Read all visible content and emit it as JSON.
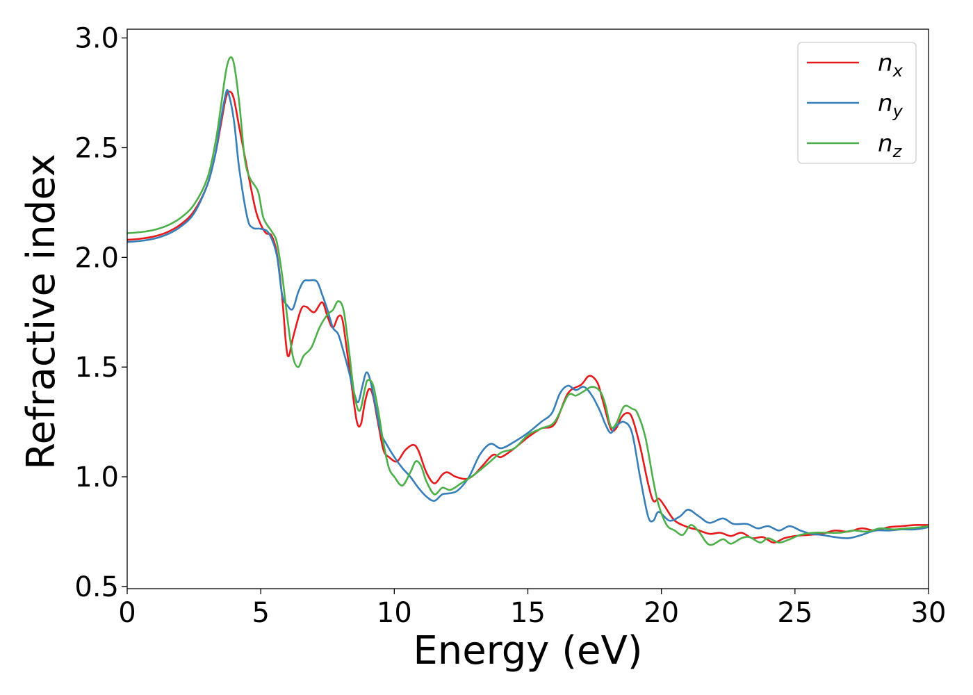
{
  "chart_data": {
    "type": "line",
    "title": "",
    "xlabel": "Energy (eV)",
    "ylabel": "Refractive index",
    "xlim": [
      0,
      30
    ],
    "ylim": [
      0.49,
      3.04
    ],
    "xticks": [
      0,
      5,
      10,
      15,
      20,
      25,
      30
    ],
    "xtick_labels": [
      "0",
      "5",
      "10",
      "15",
      "20",
      "25",
      "30"
    ],
    "yticks": [
      0.5,
      1.0,
      1.5,
      2.0,
      2.5,
      3.0
    ],
    "ytick_labels": [
      "0.5",
      "1.0",
      "1.5",
      "2.0",
      "2.5",
      "3.0"
    ],
    "grid": false,
    "legend_position": "top-right",
    "series": [
      {
        "name": "n_x",
        "legend_base": "n",
        "legend_sub": "x",
        "color": "#e41a1c",
        "points": [
          [
            0,
            2.08
          ],
          [
            0.5,
            2.085
          ],
          [
            1,
            2.095
          ],
          [
            1.5,
            2.115
          ],
          [
            2,
            2.15
          ],
          [
            2.5,
            2.21
          ],
          [
            3,
            2.33
          ],
          [
            3.3,
            2.47
          ],
          [
            3.5,
            2.6
          ],
          [
            3.7,
            2.73
          ],
          [
            3.85,
            2.755
          ],
          [
            4.0,
            2.72
          ],
          [
            4.2,
            2.59
          ],
          [
            4.5,
            2.4
          ],
          [
            4.8,
            2.22
          ],
          [
            5.0,
            2.15
          ],
          [
            5.2,
            2.11
          ],
          [
            5.4,
            2.1
          ],
          [
            5.6,
            2.02
          ],
          [
            5.8,
            1.82
          ],
          [
            5.95,
            1.6
          ],
          [
            6.05,
            1.55
          ],
          [
            6.2,
            1.63
          ],
          [
            6.5,
            1.76
          ],
          [
            6.7,
            1.775
          ],
          [
            7.0,
            1.75
          ],
          [
            7.3,
            1.795
          ],
          [
            7.5,
            1.73
          ],
          [
            7.7,
            1.68
          ],
          [
            7.9,
            1.73
          ],
          [
            8.05,
            1.72
          ],
          [
            8.2,
            1.6
          ],
          [
            8.4,
            1.42
          ],
          [
            8.6,
            1.25
          ],
          [
            8.75,
            1.24
          ],
          [
            8.9,
            1.34
          ],
          [
            9.05,
            1.4
          ],
          [
            9.2,
            1.37
          ],
          [
            9.4,
            1.24
          ],
          [
            9.6,
            1.12
          ],
          [
            9.8,
            1.09
          ],
          [
            10.1,
            1.07
          ],
          [
            10.4,
            1.12
          ],
          [
            10.7,
            1.145
          ],
          [
            10.9,
            1.12
          ],
          [
            11.2,
            1.02
          ],
          [
            11.5,
            0.97
          ],
          [
            11.8,
            1.01
          ],
          [
            12.0,
            1.02
          ],
          [
            12.3,
            1.0
          ],
          [
            12.7,
            0.99
          ],
          [
            13.0,
            1.01
          ],
          [
            13.3,
            1.05
          ],
          [
            13.7,
            1.1
          ],
          [
            14.0,
            1.09
          ],
          [
            14.5,
            1.13
          ],
          [
            15.0,
            1.18
          ],
          [
            15.5,
            1.22
          ],
          [
            16.0,
            1.24
          ],
          [
            16.5,
            1.38
          ],
          [
            17.0,
            1.42
          ],
          [
            17.3,
            1.46
          ],
          [
            17.6,
            1.43
          ],
          [
            17.8,
            1.35
          ],
          [
            18.1,
            1.22
          ],
          [
            18.3,
            1.22
          ],
          [
            18.5,
            1.27
          ],
          [
            18.7,
            1.29
          ],
          [
            18.9,
            1.27
          ],
          [
            19.2,
            1.14
          ],
          [
            19.5,
            0.97
          ],
          [
            19.7,
            0.89
          ],
          [
            19.9,
            0.9
          ],
          [
            20.1,
            0.87
          ],
          [
            20.5,
            0.8
          ],
          [
            21.0,
            0.77
          ],
          [
            21.3,
            0.76
          ],
          [
            21.8,
            0.74
          ],
          [
            22.2,
            0.745
          ],
          [
            22.6,
            0.73
          ],
          [
            23.0,
            0.745
          ],
          [
            23.4,
            0.72
          ],
          [
            23.8,
            0.725
          ],
          [
            24.2,
            0.7
          ],
          [
            24.6,
            0.72
          ],
          [
            25.0,
            0.73
          ],
          [
            25.5,
            0.735
          ],
          [
            26.0,
            0.74
          ],
          [
            26.5,
            0.755
          ],
          [
            27.0,
            0.75
          ],
          [
            27.5,
            0.765
          ],
          [
            28.0,
            0.755
          ],
          [
            28.5,
            0.77
          ],
          [
            29.0,
            0.775
          ],
          [
            29.5,
            0.78
          ],
          [
            30,
            0.78
          ]
        ]
      },
      {
        "name": "n_y",
        "legend_base": "n",
        "legend_sub": "y",
        "color": "#377eb8",
        "points": [
          [
            0,
            2.07
          ],
          [
            0.5,
            2.075
          ],
          [
            1,
            2.085
          ],
          [
            1.5,
            2.105
          ],
          [
            2,
            2.14
          ],
          [
            2.5,
            2.2
          ],
          [
            3,
            2.33
          ],
          [
            3.3,
            2.47
          ],
          [
            3.5,
            2.62
          ],
          [
            3.7,
            2.75
          ],
          [
            3.8,
            2.745
          ],
          [
            4.0,
            2.62
          ],
          [
            4.2,
            2.4
          ],
          [
            4.5,
            2.18
          ],
          [
            4.7,
            2.135
          ],
          [
            5.0,
            2.13
          ],
          [
            5.3,
            2.11
          ],
          [
            5.6,
            2.01
          ],
          [
            5.8,
            1.83
          ],
          [
            6.0,
            1.78
          ],
          [
            6.2,
            1.765
          ],
          [
            6.4,
            1.84
          ],
          [
            6.6,
            1.89
          ],
          [
            6.8,
            1.895
          ],
          [
            7.1,
            1.89
          ],
          [
            7.3,
            1.83
          ],
          [
            7.5,
            1.76
          ],
          [
            7.7,
            1.68
          ],
          [
            7.9,
            1.65
          ],
          [
            8.1,
            1.57
          ],
          [
            8.3,
            1.48
          ],
          [
            8.5,
            1.38
          ],
          [
            8.65,
            1.34
          ],
          [
            8.8,
            1.41
          ],
          [
            8.95,
            1.475
          ],
          [
            9.1,
            1.44
          ],
          [
            9.3,
            1.32
          ],
          [
            9.5,
            1.2
          ],
          [
            9.7,
            1.15
          ],
          [
            10.0,
            1.09
          ],
          [
            10.3,
            1.04
          ],
          [
            10.6,
            1.0
          ],
          [
            10.9,
            0.95
          ],
          [
            11.2,
            0.91
          ],
          [
            11.5,
            0.89
          ],
          [
            11.8,
            0.92
          ],
          [
            12.1,
            0.925
          ],
          [
            12.4,
            0.94
          ],
          [
            12.8,
            1.0
          ],
          [
            13.2,
            1.1
          ],
          [
            13.6,
            1.15
          ],
          [
            14.0,
            1.13
          ],
          [
            14.5,
            1.16
          ],
          [
            15.0,
            1.2
          ],
          [
            15.5,
            1.25
          ],
          [
            15.9,
            1.29
          ],
          [
            16.2,
            1.38
          ],
          [
            16.5,
            1.415
          ],
          [
            16.8,
            1.395
          ],
          [
            17.1,
            1.41
          ],
          [
            17.4,
            1.37
          ],
          [
            17.7,
            1.3
          ],
          [
            17.9,
            1.24
          ],
          [
            18.1,
            1.2
          ],
          [
            18.3,
            1.23
          ],
          [
            18.6,
            1.25
          ],
          [
            18.9,
            1.2
          ],
          [
            19.2,
            1.0
          ],
          [
            19.5,
            0.82
          ],
          [
            19.7,
            0.8
          ],
          [
            19.9,
            0.84
          ],
          [
            20.3,
            0.8
          ],
          [
            20.7,
            0.82
          ],
          [
            21.0,
            0.85
          ],
          [
            21.4,
            0.82
          ],
          [
            21.8,
            0.79
          ],
          [
            22.3,
            0.81
          ],
          [
            22.7,
            0.785
          ],
          [
            23.2,
            0.785
          ],
          [
            23.6,
            0.765
          ],
          [
            24.0,
            0.775
          ],
          [
            24.4,
            0.755
          ],
          [
            24.8,
            0.775
          ],
          [
            25.2,
            0.755
          ],
          [
            25.6,
            0.74
          ],
          [
            26.0,
            0.735
          ],
          [
            26.5,
            0.725
          ],
          [
            27.0,
            0.72
          ],
          [
            27.5,
            0.735
          ],
          [
            28.0,
            0.755
          ],
          [
            28.5,
            0.755
          ],
          [
            29.0,
            0.76
          ],
          [
            29.5,
            0.76
          ],
          [
            30,
            0.77
          ]
        ]
      },
      {
        "name": "n_z",
        "legend_base": "n",
        "legend_sub": "z",
        "color": "#4daf4a",
        "points": [
          [
            0,
            2.11
          ],
          [
            0.5,
            2.115
          ],
          [
            1,
            2.125
          ],
          [
            1.5,
            2.145
          ],
          [
            2,
            2.18
          ],
          [
            2.5,
            2.24
          ],
          [
            3,
            2.36
          ],
          [
            3.3,
            2.52
          ],
          [
            3.5,
            2.68
          ],
          [
            3.7,
            2.85
          ],
          [
            3.85,
            2.91
          ],
          [
            4.0,
            2.88
          ],
          [
            4.2,
            2.7
          ],
          [
            4.4,
            2.45
          ],
          [
            4.6,
            2.36
          ],
          [
            4.9,
            2.3
          ],
          [
            5.1,
            2.18
          ],
          [
            5.4,
            2.12
          ],
          [
            5.6,
            2.07
          ],
          [
            5.8,
            1.92
          ],
          [
            6.0,
            1.72
          ],
          [
            6.2,
            1.55
          ],
          [
            6.4,
            1.5
          ],
          [
            6.6,
            1.55
          ],
          [
            6.9,
            1.59
          ],
          [
            7.2,
            1.68
          ],
          [
            7.5,
            1.74
          ],
          [
            7.7,
            1.76
          ],
          [
            7.9,
            1.8
          ],
          [
            8.1,
            1.76
          ],
          [
            8.3,
            1.58
          ],
          [
            8.5,
            1.38
          ],
          [
            8.7,
            1.3
          ],
          [
            8.9,
            1.4
          ],
          [
            9.0,
            1.44
          ],
          [
            9.2,
            1.42
          ],
          [
            9.4,
            1.3
          ],
          [
            9.6,
            1.15
          ],
          [
            9.8,
            1.04
          ],
          [
            10.0,
            1.0
          ],
          [
            10.3,
            0.96
          ],
          [
            10.6,
            1.02
          ],
          [
            10.8,
            1.07
          ],
          [
            11.0,
            1.05
          ],
          [
            11.2,
            0.98
          ],
          [
            11.5,
            0.92
          ],
          [
            11.8,
            0.95
          ],
          [
            12.1,
            0.94
          ],
          [
            12.5,
            0.97
          ],
          [
            13.0,
            1.01
          ],
          [
            13.5,
            1.06
          ],
          [
            14.0,
            1.11
          ],
          [
            14.5,
            1.13
          ],
          [
            15.0,
            1.19
          ],
          [
            15.5,
            1.22
          ],
          [
            16.0,
            1.25
          ],
          [
            16.5,
            1.37
          ],
          [
            16.8,
            1.37
          ],
          [
            17.1,
            1.39
          ],
          [
            17.4,
            1.41
          ],
          [
            17.7,
            1.39
          ],
          [
            17.9,
            1.33
          ],
          [
            18.1,
            1.23
          ],
          [
            18.3,
            1.24
          ],
          [
            18.6,
            1.32
          ],
          [
            18.9,
            1.31
          ],
          [
            19.1,
            1.29
          ],
          [
            19.4,
            1.18
          ],
          [
            19.7,
            0.98
          ],
          [
            19.9,
            0.87
          ],
          [
            20.2,
            0.78
          ],
          [
            20.5,
            0.755
          ],
          [
            20.8,
            0.735
          ],
          [
            21.1,
            0.78
          ],
          [
            21.4,
            0.75
          ],
          [
            21.8,
            0.69
          ],
          [
            22.3,
            0.715
          ],
          [
            22.6,
            0.695
          ],
          [
            23.0,
            0.72
          ],
          [
            23.3,
            0.725
          ],
          [
            23.7,
            0.7
          ],
          [
            24.0,
            0.72
          ],
          [
            24.4,
            0.7
          ],
          [
            24.8,
            0.715
          ],
          [
            25.2,
            0.735
          ],
          [
            25.7,
            0.745
          ],
          [
            26.2,
            0.745
          ],
          [
            26.7,
            0.745
          ],
          [
            27.2,
            0.755
          ],
          [
            27.7,
            0.75
          ],
          [
            28.2,
            0.765
          ],
          [
            28.7,
            0.76
          ],
          [
            29.2,
            0.765
          ],
          [
            29.7,
            0.77
          ],
          [
            30,
            0.775
          ]
        ]
      }
    ]
  }
}
